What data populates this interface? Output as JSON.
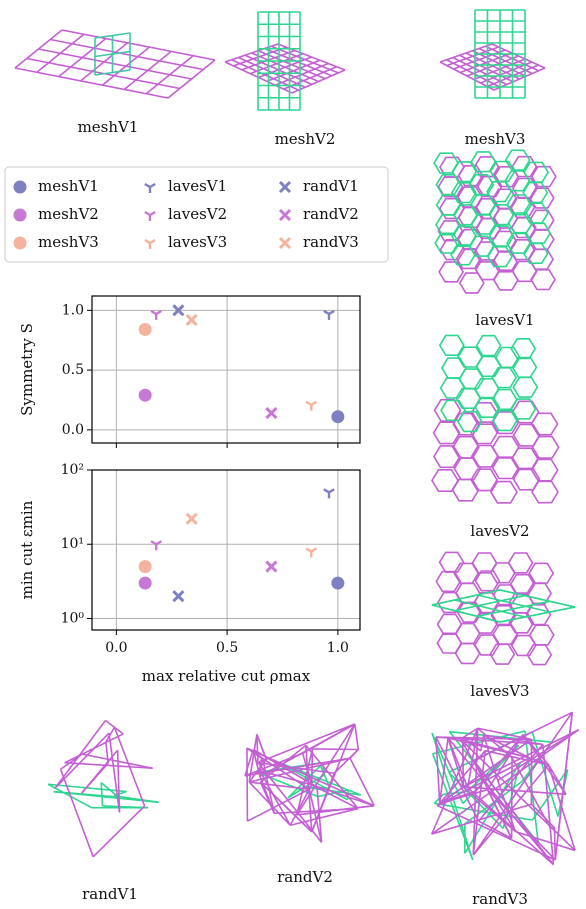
{
  "chart_data": [
    {
      "type": "scatter",
      "ylabel": "Symmetry S",
      "xlim": [
        -0.11,
        1.1
      ],
      "ylim": [
        -0.11,
        1.12
      ],
      "xticks": [
        0,
        0.5,
        1
      ],
      "show_xtick_labels": false,
      "yticks": [
        {
          "value": 0,
          "label": "0.0"
        },
        {
          "value": 0.5,
          "label": "0.5"
        },
        {
          "value": 1,
          "label": "1.0"
        }
      ],
      "grid": true,
      "legend": true,
      "series": [
        {
          "name": "meshV1",
          "color": "#7f80c2",
          "marker": "circle",
          "x": [
            1.0
          ],
          "values": [
            0.11
          ]
        },
        {
          "name": "meshV2",
          "color": "#c678d4",
          "marker": "circle",
          "x": [
            0.13
          ],
          "values": [
            0.29
          ]
        },
        {
          "name": "meshV3",
          "color": "#f4b39e",
          "marker": "circle",
          "x": [
            0.13
          ],
          "values": [
            0.84
          ]
        },
        {
          "name": "lavesV1",
          "color": "#7f80c2",
          "marker": "tri",
          "x": [
            0.96
          ],
          "values": [
            0.97
          ]
        },
        {
          "name": "lavesV2",
          "color": "#c678d4",
          "marker": "tri",
          "x": [
            0.18
          ],
          "values": [
            0.97
          ]
        },
        {
          "name": "lavesV3",
          "color": "#f4b39e",
          "marker": "tri",
          "x": [
            0.88
          ],
          "values": [
            0.21
          ]
        },
        {
          "name": "randV1",
          "color": "#7f80c2",
          "marker": "x",
          "x": [
            0.28
          ],
          "values": [
            1.0
          ]
        },
        {
          "name": "randV2",
          "color": "#c678d4",
          "marker": "x",
          "x": [
            0.7
          ],
          "values": [
            0.14
          ]
        },
        {
          "name": "randV3",
          "color": "#f4b39e",
          "marker": "x",
          "x": [
            0.34
          ],
          "values": [
            0.92
          ]
        }
      ]
    },
    {
      "type": "scatter",
      "ylabel": "min cut εmin",
      "xlabel": "max relative cut ρmax",
      "xlim": [
        -0.11,
        1.1
      ],
      "ylim": [
        0.7,
        100
      ],
      "yscale": "log",
      "xticks": [
        {
          "value": 0,
          "label": "0.0"
        },
        {
          "value": 0.5,
          "label": "0.5"
        },
        {
          "value": 1,
          "label": "1.0"
        }
      ],
      "show_xtick_labels": true,
      "yticks": [
        {
          "value": 1,
          "label": "10⁰"
        },
        {
          "value": 10,
          "label": "10¹"
        },
        {
          "value": 100,
          "label": "10²"
        }
      ],
      "grid": true,
      "series": [
        {
          "color": "#7f80c2",
          "marker": "circle",
          "x": [
            1.0
          ],
          "values": [
            3
          ]
        },
        {
          "color": "#c678d4",
          "marker": "circle",
          "x": [
            0.13
          ],
          "values": [
            3
          ]
        },
        {
          "color": "#f4b39e",
          "marker": "circle",
          "x": [
            0.13
          ],
          "values": [
            5
          ]
        },
        {
          "color": "#7f80c2",
          "marker": "tri",
          "x": [
            0.96
          ],
          "values": [
            50
          ]
        },
        {
          "color": "#c678d4",
          "marker": "tri",
          "x": [
            0.18
          ],
          "values": [
            10
          ]
        },
        {
          "color": "#f4b39e",
          "marker": "tri",
          "x": [
            0.88
          ],
          "values": [
            8
          ]
        },
        {
          "color": "#7f80c2",
          "marker": "x",
          "x": [
            0.28
          ],
          "values": [
            2
          ]
        },
        {
          "color": "#c678d4",
          "marker": "x",
          "x": [
            0.7
          ],
          "values": [
            5
          ]
        },
        {
          "color": "#f4b39e",
          "marker": "x",
          "x": [
            0.34
          ],
          "values": [
            22
          ]
        }
      ]
    }
  ],
  "illustrations": [
    "meshV1",
    "meshV2",
    "meshV3",
    "lavesV1",
    "lavesV2",
    "lavesV3",
    "randV1",
    "randV2",
    "randV3"
  ]
}
